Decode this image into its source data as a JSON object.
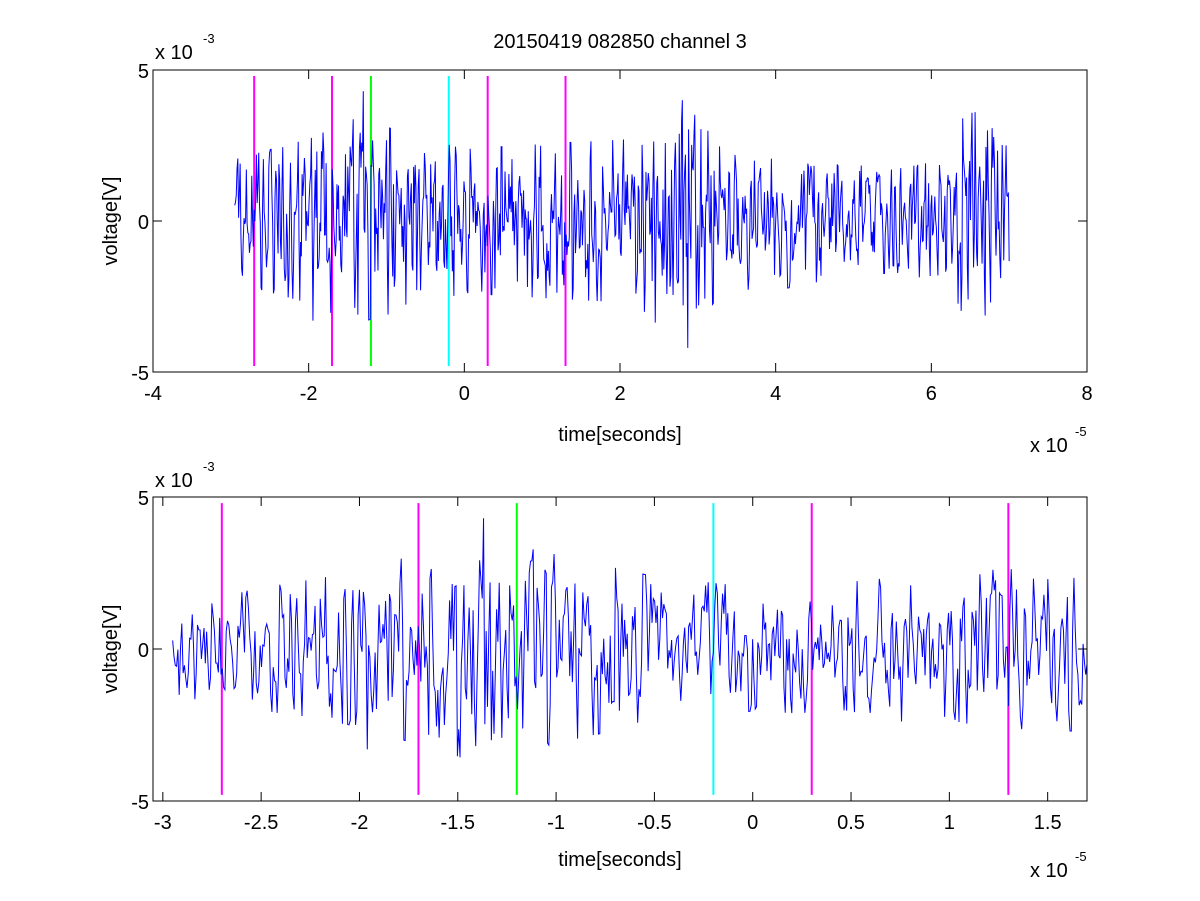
{
  "figure_title": "20150419 082850 channel 3",
  "chart_data": [
    {
      "type": "line",
      "xlabel": "time[seconds]",
      "ylabel": "voltage[V]",
      "x_exponent_label": "x 10",
      "x_exponent": "-5",
      "y_exponent_label": "x 10",
      "y_exponent": "-3",
      "xlim": [
        -4,
        8
      ],
      "ylim": [
        -5,
        5
      ],
      "x_ticks": [
        "-4",
        "-2",
        "0",
        "2",
        "4",
        "6",
        "8"
      ],
      "y_ticks": [
        "-5",
        "0",
        "5"
      ],
      "series": [
        {
          "color": "#0000ff",
          "x_range": [
            -2.95,
            7.0
          ],
          "y_units": "1e-3 V",
          "amplitude_profile": [
            [
              -2.95,
              1.2
            ],
            [
              -2.0,
              1.6
            ],
            [
              -1.4,
              2.0
            ],
            [
              0.0,
              1.4
            ],
            [
              1.0,
              1.5
            ],
            [
              2.2,
              1.6
            ],
            [
              2.8,
              2.5
            ],
            [
              3.2,
              1.6
            ],
            [
              4.5,
              1.2
            ],
            [
              5.5,
              1.0
            ],
            [
              6.2,
              1.2
            ],
            [
              6.5,
              2.1
            ],
            [
              6.8,
              2.2
            ],
            [
              7.0,
              1.4
            ]
          ],
          "peaks": [
            [
              -1.9,
              2.3
            ],
            [
              -1.95,
              -3.3
            ],
            [
              -1.3,
              4.3
            ],
            [
              -1.37,
              -3.1
            ],
            [
              2.8,
              4.0
            ],
            [
              2.87,
              -4.2
            ],
            [
              6.4,
              3.4
            ],
            [
              6.47,
              -2.6
            ],
            [
              6.72,
              3.0
            ],
            [
              6.76,
              -2.7
            ]
          ]
        }
      ],
      "markers": [
        {
          "x": -2.7,
          "color": "#ff00ff"
        },
        {
          "x": -1.7,
          "color": "#ff00ff"
        },
        {
          "x": -1.2,
          "color": "#00ff00"
        },
        {
          "x": -0.2,
          "color": "#00ffff"
        },
        {
          "x": 0.3,
          "color": "#ff00ff"
        },
        {
          "x": 1.3,
          "color": "#ff00ff"
        }
      ],
      "marker_y_range": [
        -4.8,
        4.8
      ],
      "grid": false
    },
    {
      "type": "line",
      "xlabel": "time[seconds]",
      "ylabel": "voltage[V]",
      "x_exponent_label": "x 10",
      "x_exponent": "-5",
      "y_exponent_label": "x 10",
      "y_exponent": "-3",
      "xlim": [
        -3.05,
        1.7
      ],
      "ylim": [
        -5,
        5
      ],
      "x_ticks": [
        "-3",
        "-2.5",
        "-2",
        "-1.5",
        "-1",
        "-0.5",
        "0",
        "0.5",
        "1",
        "1.5"
      ],
      "x_tick_values": [
        -3,
        -2.5,
        -2,
        -1.5,
        -1,
        -0.5,
        0,
        0.5,
        1,
        1.5
      ],
      "y_ticks": [
        "-5",
        "0",
        "5"
      ],
      "series": [
        {
          "color": "#0000ff",
          "x_range": [
            -2.95,
            1.7
          ],
          "y_units": "1e-3 V",
          "amplitude_profile": [
            [
              -2.95,
              0.9
            ],
            [
              -2.0,
              1.5
            ],
            [
              -1.4,
              2.2
            ],
            [
              -1.2,
              2.0
            ],
            [
              -0.5,
              1.4
            ],
            [
              0.0,
              1.2
            ],
            [
              0.5,
              1.3
            ],
            [
              1.0,
              1.5
            ],
            [
              1.7,
              1.6
            ]
          ],
          "peaks": [
            [
              -1.96,
              -3.3
            ],
            [
              -1.37,
              4.3
            ],
            [
              -1.33,
              -3.0
            ],
            [
              -1.12,
              2.9
            ],
            [
              1.05,
              -2.4
            ],
            [
              1.5,
              2.3
            ]
          ]
        }
      ],
      "markers": [
        {
          "x": -2.7,
          "color": "#ff00ff"
        },
        {
          "x": -1.7,
          "color": "#ff00ff"
        },
        {
          "x": -1.2,
          "color": "#00ff00"
        },
        {
          "x": -0.2,
          "color": "#00ffff"
        },
        {
          "x": 0.3,
          "color": "#ff00ff"
        },
        {
          "x": 1.3,
          "color": "#ff00ff"
        }
      ],
      "marker_y_range": [
        -4.8,
        4.8
      ],
      "grid": false
    }
  ]
}
